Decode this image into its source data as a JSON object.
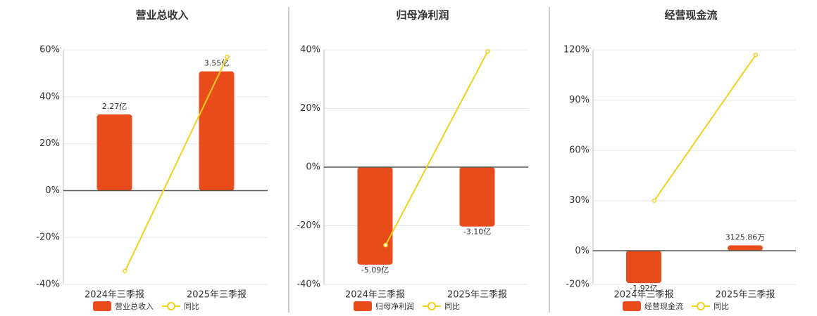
{
  "chart_data": [
    {
      "type": "bar",
      "title": "营业总收入",
      "categories": [
        "2024年三季报",
        "2025年三季报"
      ],
      "series": [
        {
          "name": "营业总收入",
          "type": "bar",
          "axis": "y2",
          "color": "#e84c1a",
          "values": [
            227000000,
            355000000
          ],
          "value_labels": [
            "2.27亿",
            "3.55亿"
          ]
        },
        {
          "name": "同比",
          "type": "line",
          "color": "#f2d01b",
          "values": [
            -34.3,
            57
          ]
        }
      ],
      "ylim": [
        -40,
        60
      ],
      "y2lim": [
        -279000000,
        419000000
      ],
      "grid": true,
      "yticks": [
        {
          "value": -40,
          "label": "-40%"
        },
        {
          "value": -20,
          "label": "-20%"
        },
        {
          "value": 0,
          "label": "0%"
        },
        {
          "value": 20,
          "label": "20%"
        },
        {
          "value": 40,
          "label": "40%"
        },
        {
          "value": 60,
          "label": "60%"
        }
      ]
    },
    {
      "type": "bar",
      "title": "归母净利润",
      "categories": [
        "2024年三季报",
        "2025年三季报"
      ],
      "series": [
        {
          "name": "归母净利润",
          "type": "bar",
          "axis": "y2",
          "color": "#e84c1a",
          "values": [
            -509000000,
            -310000000
          ],
          "value_labels": [
            "-5.09亿",
            "-3.10亿"
          ]
        },
        {
          "name": "同比",
          "type": "line",
          "color": "#f2d01b",
          "values": [
            -26.6,
            39.5
          ]
        }
      ],
      "ylim": [
        -40,
        40
      ],
      "y2lim": [
        -612000000,
        612000000
      ],
      "grid": true,
      "yticks": [
        {
          "value": -40,
          "label": "-40%"
        },
        {
          "value": -20,
          "label": "-20%"
        },
        {
          "value": 0,
          "label": "0%"
        },
        {
          "value": 20,
          "label": "20%"
        },
        {
          "value": 40,
          "label": "40%"
        }
      ]
    },
    {
      "type": "bar",
      "title": "经营现金流",
      "categories": [
        "2024年三季报",
        "2025年三季报"
      ],
      "series": [
        {
          "name": "经营现金流",
          "type": "bar",
          "axis": "y2",
          "color": "#e84c1a",
          "values": [
            -192000000,
            31258600
          ],
          "value_labels": [
            "-1.92亿",
            "3125.86万"
          ]
        },
        {
          "name": "同比",
          "type": "line",
          "color": "#f2d01b",
          "values": [
            30,
            117
          ]
        }
      ],
      "ylim": [
        -20,
        120
      ],
      "y2lim": [
        -200000000,
        1190000000
      ],
      "grid": true,
      "yticks": [
        {
          "value": -20,
          "label": "-20%"
        },
        {
          "value": 0,
          "label": "0%"
        },
        {
          "value": 30,
          "label": "30%"
        },
        {
          "value": 60,
          "label": "60%"
        },
        {
          "value": 90,
          "label": "90%"
        },
        {
          "value": 120,
          "label": "120%"
        }
      ]
    }
  ]
}
